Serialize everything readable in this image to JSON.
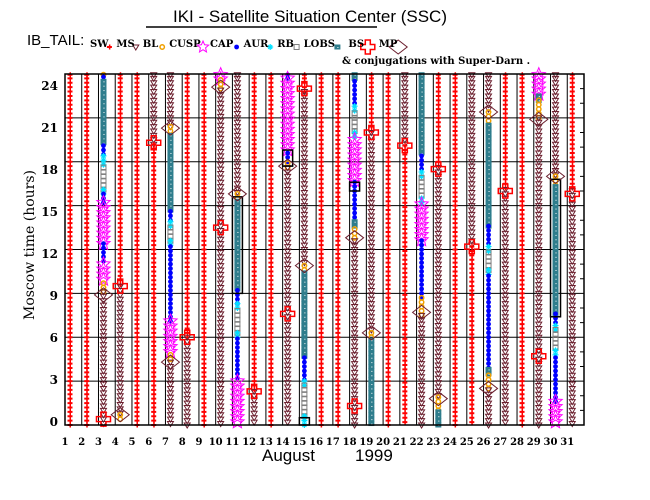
{
  "title": "IKI - Satellite Situation Center (SSC)",
  "legend": {
    "prefix": "IB_TAIL:",
    "entries": [
      {
        "code": "SW",
        "label": "SW"
      },
      {
        "code": "MS",
        "label": "MS"
      },
      {
        "code": "BL",
        "label": "BL"
      },
      {
        "code": "CUSP",
        "label": "CUSP"
      },
      {
        "code": "CAP",
        "label": "CAP"
      },
      {
        "code": "AUR",
        "label": "AUR"
      },
      {
        "code": "RB",
        "label": "RB"
      },
      {
        "code": "LOBS",
        "label": "LOBS"
      },
      {
        "code": "BS",
        "label": "BS"
      },
      {
        "code": "MP",
        "label": "MP"
      }
    ],
    "note": "& conjugations with Super-Darn ."
  },
  "colors": {
    "SW": "#ff0000",
    "MS": "#6b1f2e",
    "BL": "#f0a000",
    "CUSP": "#ff00ff",
    "CAP": "#0000ff",
    "AUR": "#00e0ff",
    "RB": "#808080",
    "LOBS": "#2e7d8c",
    "BS": "#ff0000",
    "MP": "#6b1f2e"
  },
  "chart_data": {
    "type": "scatter",
    "ylabel": "Moscow time (hours)",
    "xlabel_month": "August",
    "xlabel_year": "1999",
    "xticks": [
      "1",
      "2",
      "3",
      "4",
      "5",
      "6",
      "7",
      "8",
      "9",
      "10",
      "11",
      "12",
      "13",
      "14",
      "15",
      "16",
      "17",
      "18",
      "19",
      "20",
      "21",
      "22",
      "23",
      "24",
      "25",
      "26",
      "27",
      "28",
      "29",
      "30",
      "31"
    ],
    "yticks": [
      "0",
      "3",
      "6",
      "9",
      "12",
      "15",
      "18",
      "21",
      "24"
    ],
    "ylim": [
      0,
      24
    ],
    "xlim": [
      1,
      31
    ],
    "grid": true,
    "segments": {
      "1": [
        [
          24,
          0,
          "SW"
        ]
      ],
      "2": [
        [
          24,
          0,
          "SW"
        ]
      ],
      "3": [
        [
          24,
          23.8,
          "BL"
        ],
        [
          23.8,
          23.5,
          "CAP"
        ],
        [
          23.5,
          19.1,
          "LOBS"
        ],
        [
          19.1,
          18.4,
          "CAP"
        ],
        [
          18.4,
          17.6,
          "AUR"
        ],
        [
          17.6,
          16.1,
          "RB"
        ],
        [
          16.1,
          15.8,
          "AUR"
        ],
        [
          15.8,
          15.2,
          "CAP"
        ],
        [
          15.2,
          12.4,
          "CUSP"
        ],
        [
          12.4,
          11,
          "CAP"
        ],
        [
          11,
          9.7,
          "CUSP"
        ],
        [
          9.7,
          9.1,
          "BL"
        ],
        [
          9.1,
          0,
          "MS"
        ]
      ],
      "4": [
        [
          24,
          9.5,
          "SW"
        ],
        [
          9.5,
          0.7,
          "MS"
        ],
        [
          0.7,
          0.3,
          "BL"
        ]
      ],
      "5": [
        [
          24,
          0,
          "SW"
        ]
      ],
      "6": [
        [
          24,
          19.2,
          "MS"
        ],
        [
          19.2,
          0,
          "SW"
        ]
      ],
      "7": [
        [
          24,
          20.4,
          "MS"
        ],
        [
          20.4,
          19.8,
          "BL"
        ],
        [
          19.8,
          14.6,
          "LOBS"
        ],
        [
          14.6,
          13.9,
          "CAP"
        ],
        [
          13.9,
          13.5,
          "AUR"
        ],
        [
          13.5,
          12.6,
          "RB"
        ],
        [
          12.6,
          12.2,
          "AUR"
        ],
        [
          12.2,
          7.1,
          "CAP"
        ],
        [
          7.1,
          4.8,
          "CUSP"
        ],
        [
          4.8,
          4.3,
          "BL"
        ],
        [
          4.3,
          0,
          "MS"
        ]
      ],
      "8": [
        [
          24,
          6,
          "SW"
        ],
        [
          6,
          0,
          "MS"
        ]
      ],
      "9": [
        [
          24,
          0,
          "SW"
        ]
      ],
      "10": [
        [
          24,
          23.6,
          "CUSP"
        ],
        [
          23.6,
          22.9,
          "BL"
        ],
        [
          22.9,
          0,
          "MS"
        ]
      ],
      "11": [
        [
          24,
          15.8,
          "MS"
        ],
        [
          15.8,
          15.3,
          "BL"
        ],
        [
          15.3,
          9.2,
          "LOBS"
        ],
        [
          9.2,
          8.3,
          "CAP"
        ],
        [
          8.3,
          7.8,
          "AUR"
        ],
        [
          7.8,
          6.3,
          "RB"
        ],
        [
          6.3,
          5.9,
          "AUR"
        ],
        [
          5.9,
          3.0,
          "CAP"
        ],
        [
          3.0,
          0,
          "CUSP"
        ]
      ],
      "12": [
        [
          24,
          2.3,
          "SW"
        ],
        [
          2.3,
          0,
          "MS"
        ]
      ],
      "13": [
        [
          24,
          0,
          "SW"
        ]
      ],
      "14": [
        [
          24,
          23.7,
          "CAP"
        ],
        [
          23.7,
          18.6,
          "CUSP"
        ],
        [
          18.6,
          17.9,
          "CAP"
        ],
        [
          17.9,
          17.6,
          "BL"
        ],
        [
          17.6,
          0,
          "MS"
        ]
      ],
      "15": [
        [
          24,
          22.8,
          "SW"
        ],
        [
          22.8,
          10.9,
          "MS"
        ],
        [
          10.9,
          10.4,
          "BL"
        ],
        [
          10.4,
          4.6,
          "LOBS"
        ],
        [
          4.6,
          3.0,
          "CAP"
        ],
        [
          3.0,
          2.7,
          "AUR"
        ],
        [
          2.7,
          0.6,
          "RB"
        ],
        [
          0.6,
          0,
          "AUR"
        ]
      ],
      "16": [
        [
          24,
          0,
          "SW"
        ]
      ],
      "17": [
        [
          24,
          0,
          "SW"
        ]
      ],
      "18": [
        [
          24,
          23.5,
          "LOBS"
        ],
        [
          23.5,
          21.8,
          "CAP"
        ],
        [
          21.8,
          21.3,
          "AUR"
        ],
        [
          21.3,
          20.0,
          "RB"
        ],
        [
          20.0,
          19.5,
          "AUR"
        ],
        [
          19.5,
          16.6,
          "CUSP"
        ],
        [
          16.6,
          13.9,
          "CAP"
        ],
        [
          13.9,
          13.4,
          "LOBS"
        ],
        [
          13.4,
          12.6,
          "BL"
        ],
        [
          12.6,
          0,
          "MS"
        ]
      ],
      "19": [
        [
          24,
          20,
          "SW"
        ],
        [
          20,
          6.3,
          "MS"
        ],
        [
          6.3,
          5.8,
          "BL"
        ],
        [
          5.8,
          0,
          "LOBS"
        ]
      ],
      "20": [
        [
          24,
          0,
          "SW"
        ]
      ],
      "21": [
        [
          24,
          19.1,
          "MS"
        ],
        [
          19.1,
          0,
          "SW"
        ]
      ],
      "22": [
        [
          24,
          18.4,
          "LOBS"
        ],
        [
          18.4,
          17.3,
          "CAP"
        ],
        [
          17.3,
          16.9,
          "AUR"
        ],
        [
          16.9,
          15.5,
          "RB"
        ],
        [
          15.5,
          15.1,
          "AUR"
        ],
        [
          15.1,
          12.6,
          "CUSP"
        ],
        [
          12.6,
          8.7,
          "CAP"
        ],
        [
          8.7,
          7.5,
          "BL"
        ],
        [
          7.5,
          0,
          "MS"
        ]
      ],
      "23": [
        [
          24,
          17.6,
          "SW"
        ],
        [
          17.6,
          1.9,
          "MS"
        ],
        [
          1.9,
          0.9,
          "BL"
        ],
        [
          0.9,
          0,
          "LOBS"
        ]
      ],
      "24": [
        [
          24,
          0,
          "SW"
        ]
      ],
      "25": [
        [
          24,
          12.2,
          "MS"
        ],
        [
          12.2,
          0,
          "SW"
        ]
      ],
      "26": [
        [
          24,
          21.4,
          "MS"
        ],
        [
          21.4,
          20.5,
          "BL"
        ],
        [
          20.5,
          13.6,
          "LOBS"
        ],
        [
          13.6,
          12.2,
          "CAP"
        ],
        [
          12.2,
          11.8,
          "AUR"
        ],
        [
          11.8,
          10.6,
          "RB"
        ],
        [
          10.6,
          10.2,
          "AUR"
        ],
        [
          10.2,
          3.8,
          "CAP"
        ],
        [
          3.8,
          3.4,
          "LOBS"
        ],
        [
          3.4,
          2.4,
          "BL"
        ],
        [
          2.4,
          0,
          "MS"
        ]
      ],
      "27": [
        [
          24,
          16.1,
          "SW"
        ],
        [
          16.1,
          0,
          "MS"
        ]
      ],
      "28": [
        [
          24,
          0,
          "SW"
        ]
      ],
      "29": [
        [
          24,
          22.5,
          "CUSP"
        ],
        [
          22.5,
          22.2,
          "LOBS"
        ],
        [
          22.2,
          21.0,
          "BL"
        ],
        [
          21.0,
          0,
          "MS"
        ]
      ],
      "30": [
        [
          24,
          17.0,
          "MS"
        ],
        [
          17.0,
          16.3,
          "BL"
        ],
        [
          16.3,
          7.6,
          "LOBS"
        ],
        [
          7.6,
          6.8,
          "CAP"
        ],
        [
          6.8,
          6.5,
          "AUR"
        ],
        [
          6.5,
          5.1,
          "RB"
        ],
        [
          5.1,
          4.6,
          "AUR"
        ],
        [
          4.6,
          1.6,
          "CAP"
        ],
        [
          1.6,
          0,
          "CUSP"
        ]
      ],
      "31": [
        [
          24,
          16.0,
          "SW"
        ],
        [
          16.0,
          0,
          "MS"
        ]
      ]
    },
    "crossings": [
      {
        "day": 3,
        "hour": 8.9,
        "type": "MP"
      },
      {
        "day": 3,
        "hour": 0.4,
        "type": "BS"
      },
      {
        "day": 4,
        "hour": 9.5,
        "type": "BS"
      },
      {
        "day": 4,
        "hour": 0.7,
        "type": "MP"
      },
      {
        "day": 6,
        "hour": 19.3,
        "type": "BS"
      },
      {
        "day": 7,
        "hour": 20.3,
        "type": "MP"
      },
      {
        "day": 7,
        "hour": 4.3,
        "type": "MP"
      },
      {
        "day": 8,
        "hour": 6.0,
        "type": "BS"
      },
      {
        "day": 10,
        "hour": 23.1,
        "type": "MP"
      },
      {
        "day": 10,
        "hour": 13.5,
        "type": "BS"
      },
      {
        "day": 11,
        "hour": 15.8,
        "type": "MP"
      },
      {
        "day": 12,
        "hour": 2.3,
        "type": "BS"
      },
      {
        "day": 14,
        "hour": 17.7,
        "type": "MP"
      },
      {
        "day": 14,
        "hour": 7.6,
        "type": "BS"
      },
      {
        "day": 15,
        "hour": 23.0,
        "type": "BS"
      },
      {
        "day": 15,
        "hour": 10.9,
        "type": "MP"
      },
      {
        "day": 18,
        "hour": 12.8,
        "type": "MP"
      },
      {
        "day": 18,
        "hour": 1.3,
        "type": "BS"
      },
      {
        "day": 19,
        "hour": 20.0,
        "type": "BS"
      },
      {
        "day": 19,
        "hour": 6.3,
        "type": "MP"
      },
      {
        "day": 21,
        "hour": 19.1,
        "type": "BS"
      },
      {
        "day": 22,
        "hour": 7.7,
        "type": "MP"
      },
      {
        "day": 23,
        "hour": 17.5,
        "type": "BS"
      },
      {
        "day": 23,
        "hour": 1.8,
        "type": "MP"
      },
      {
        "day": 25,
        "hour": 12.2,
        "type": "BS"
      },
      {
        "day": 26,
        "hour": 21.4,
        "type": "MP"
      },
      {
        "day": 26,
        "hour": 2.5,
        "type": "MP"
      },
      {
        "day": 27,
        "hour": 16.0,
        "type": "BS"
      },
      {
        "day": 29,
        "hour": 20.9,
        "type": "MP"
      },
      {
        "day": 29,
        "hour": 4.7,
        "type": "BS"
      },
      {
        "day": 30,
        "hour": 17.0,
        "type": "MP"
      },
      {
        "day": 31,
        "hour": 15.8,
        "type": "BS"
      }
    ],
    "conjugations": [
      {
        "day": 11,
        "from": 15.6,
        "to": 9.0
      },
      {
        "day": 14,
        "from": 18.8,
        "to": 17.7
      },
      {
        "day": 15,
        "from": 0.5,
        "to": 0.0
      },
      {
        "day": 18,
        "from": 16.6,
        "to": 16.0
      },
      {
        "day": 30,
        "from": 16.8,
        "to": 7.4
      }
    ]
  }
}
